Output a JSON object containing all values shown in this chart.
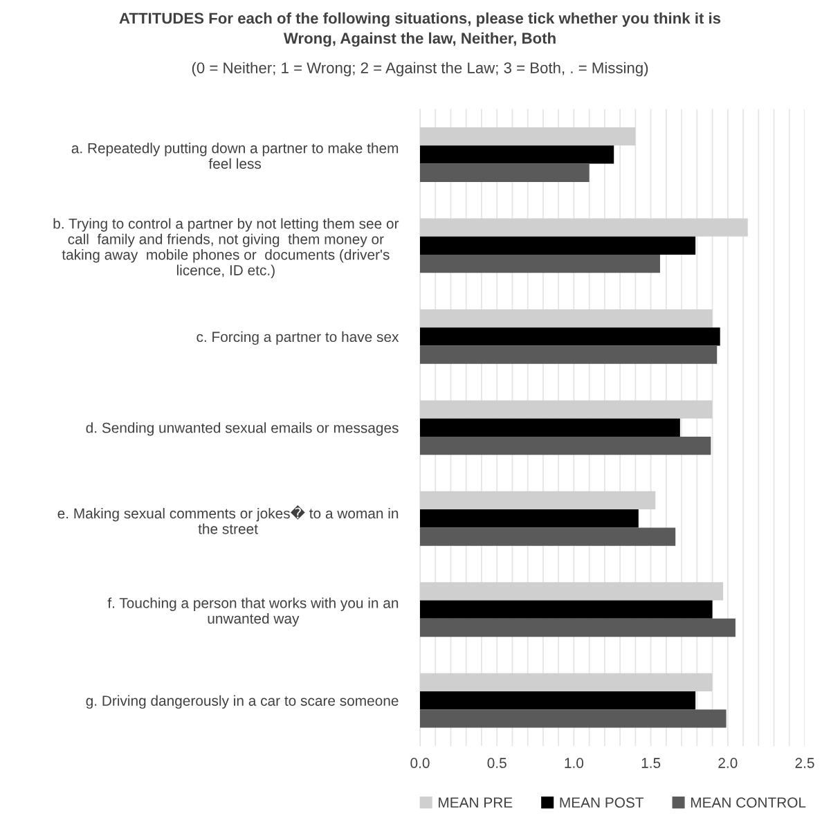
{
  "chart_data": {
    "type": "bar",
    "orientation": "horizontal",
    "title": "ATTITUDES For each of the following situations, please tick whether you think it is\nWrong, Against the law, Neither, Both",
    "subtitle": "(0 = Neither; 1 = Wrong; 2 = Against the Law; 3 = Both, . = Missing)",
    "categories": [
      "a. Repeatedly putting down a partner to make them\nfeel less",
      "b. Trying to control a partner by not letting them see or\ncall  family and friends, not giving  them money or\ntaking away  mobile phones or  documents (driver's\nlicence, ID etc.)",
      "c. Forcing a partner to have sex",
      "d. Sending unwanted sexual emails or messages",
      "e. Making sexual comments or jokes� to a woman in\nthe street",
      "f. Touching a person that works with you in an\nunwanted way",
      "g. Driving dangerously in a car to scare someone"
    ],
    "series": [
      {
        "name": "MEAN PRE",
        "color": "#d0cfd0",
        "values": [
          1.4,
          2.13,
          1.9,
          1.9,
          1.53,
          1.97,
          1.9
        ]
      },
      {
        "name": "MEAN POST",
        "color": "#000000",
        "values": [
          1.26,
          1.79,
          1.95,
          1.69,
          1.42,
          1.9,
          1.79
        ]
      },
      {
        "name": "MEAN CONTROL",
        "color": "#5a5a5a",
        "values": [
          1.1,
          1.56,
          1.93,
          1.89,
          1.66,
          2.05,
          1.99
        ]
      }
    ],
    "xlim": [
      0,
      2.5
    ],
    "xticks": [
      {
        "value": 0,
        "label": "0.0"
      },
      {
        "value": 0.1,
        "label": null
      },
      {
        "value": 0.2,
        "label": null
      },
      {
        "value": 0.3,
        "label": null
      },
      {
        "value": 0.4,
        "label": null
      },
      {
        "value": 0.5,
        "label": "0.5"
      },
      {
        "value": 0.6,
        "label": null
      },
      {
        "value": 0.7,
        "label": null
      },
      {
        "value": 0.8,
        "label": null
      },
      {
        "value": 0.9,
        "label": null
      },
      {
        "value": 1.0,
        "label": "1.0"
      },
      {
        "value": 1.1,
        "label": null
      },
      {
        "value": 1.2,
        "label": null
      },
      {
        "value": 1.3,
        "label": null
      },
      {
        "value": 1.4,
        "label": null
      },
      {
        "value": 1.5,
        "label": "1.5"
      },
      {
        "value": 1.6,
        "label": null
      },
      {
        "value": 1.7,
        "label": null
      },
      {
        "value": 1.8,
        "label": null
      },
      {
        "value": 1.9,
        "label": null
      },
      {
        "value": 2.0,
        "label": "2.0"
      },
      {
        "value": 2.1,
        "label": null
      },
      {
        "value": 2.2,
        "label": null
      },
      {
        "value": 2.3,
        "label": null
      },
      {
        "value": 2.4,
        "label": null
      },
      {
        "value": 2.5,
        "label": "2.5"
      }
    ],
    "grid": "x",
    "legend": "bottom"
  }
}
